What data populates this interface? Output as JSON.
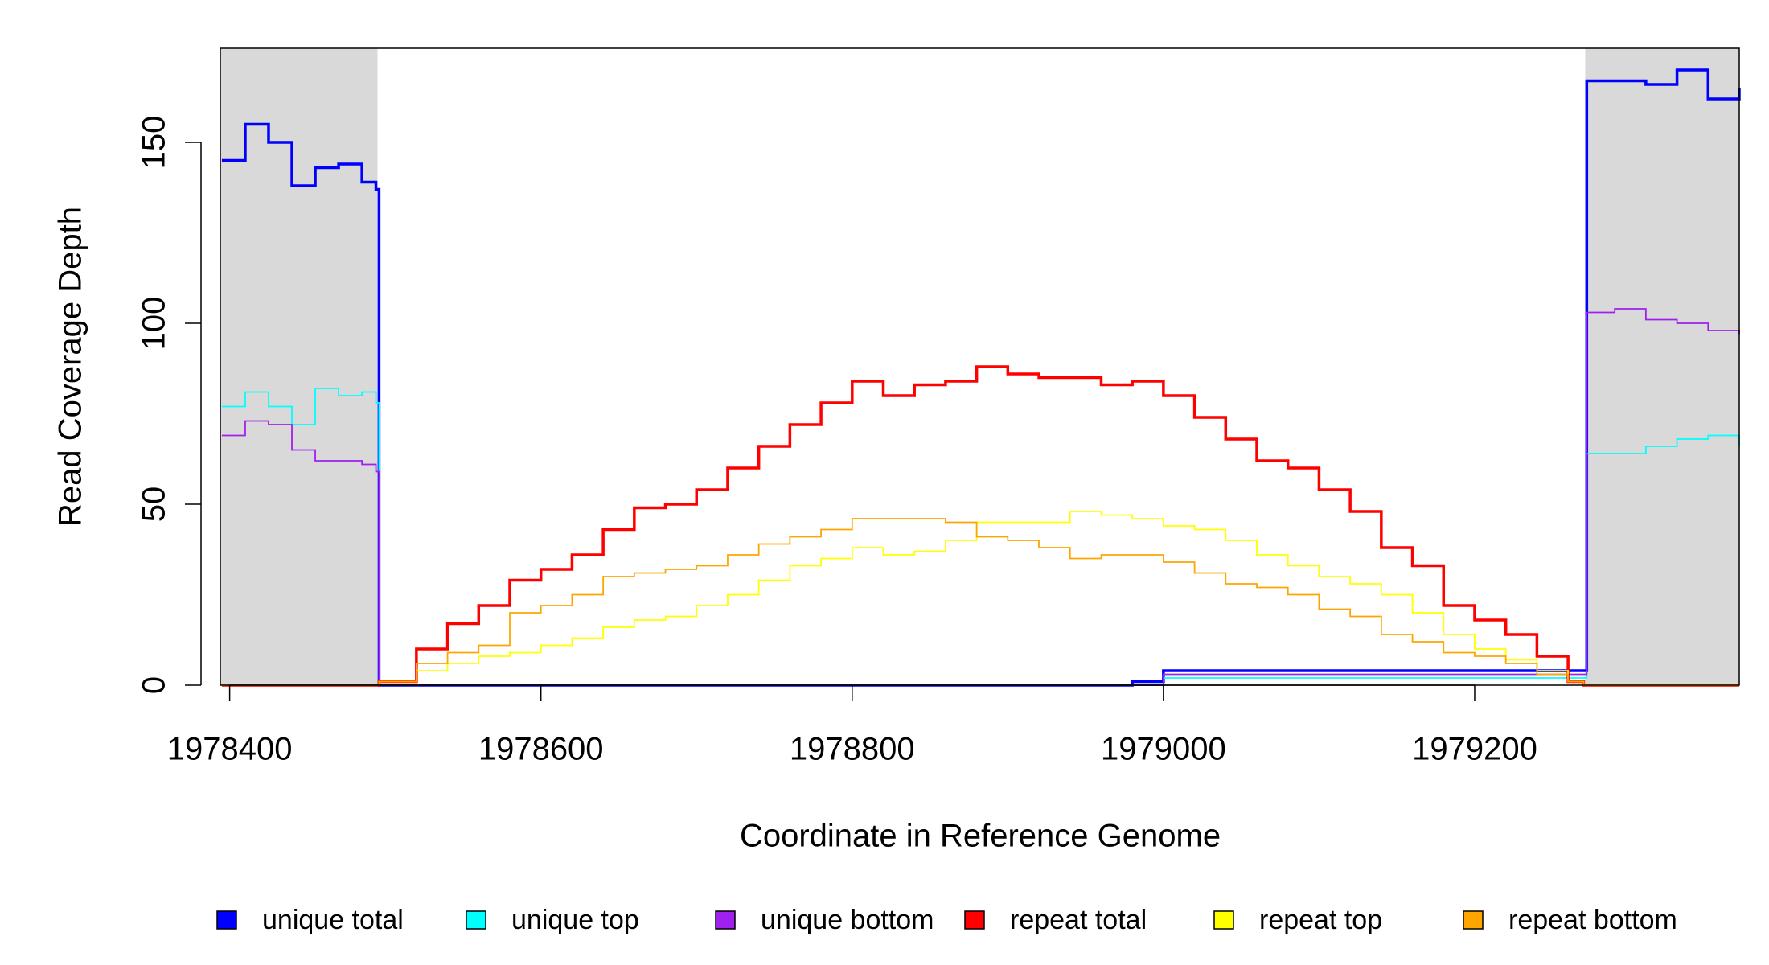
{
  "chart_data": {
    "type": "step-line",
    "x_label": "Coordinate in Reference Genome",
    "y_label": "Read Coverage Depth",
    "xlim": [
      1978394,
      1979370
    ],
    "ylim": [
      0,
      176
    ],
    "xticks": [
      1978400,
      1978600,
      1978800,
      1979000,
      1979200
    ],
    "yticks": [
      0,
      50,
      100,
      150
    ],
    "shaded_ranges": [
      [
        1978394,
        1978495
      ],
      [
        1979271,
        1979370
      ]
    ],
    "shade_color": "#d9d9d9",
    "x": [
      1978395,
      1978410,
      1978425,
      1978440,
      1978455,
      1978470,
      1978485,
      1978494,
      1978496,
      1978520,
      1978540,
      1978560,
      1978580,
      1978600,
      1978620,
      1978640,
      1978660,
      1978680,
      1978700,
      1978720,
      1978740,
      1978760,
      1978780,
      1978800,
      1978820,
      1978840,
      1978860,
      1978880,
      1978900,
      1978920,
      1978940,
      1978960,
      1978980,
      1979000,
      1979020,
      1979040,
      1979060,
      1979080,
      1979100,
      1979120,
      1979140,
      1979160,
      1979180,
      1979200,
      1979220,
      1979240,
      1979260,
      1979270,
      1979272,
      1979290,
      1979310,
      1979330,
      1979350,
      1979370
    ],
    "series": [
      {
        "name": "unique total",
        "color": "#0000ff",
        "values": [
          145,
          155,
          150,
          138,
          143,
          144,
          139,
          137,
          0,
          0,
          0,
          0,
          0,
          0,
          0,
          0,
          0,
          0,
          0,
          0,
          0,
          0,
          0,
          0,
          0,
          0,
          0,
          0,
          0,
          0,
          0,
          0,
          1,
          4,
          4,
          4,
          4,
          4,
          4,
          4,
          4,
          4,
          4,
          4,
          4,
          4,
          4,
          4,
          167,
          167,
          166,
          170,
          162,
          165
        ]
      },
      {
        "name": "unique top",
        "color": "#00ffff",
        "values": [
          77,
          81,
          77,
          72,
          82,
          80,
          81,
          78,
          0,
          0,
          0,
          0,
          0,
          0,
          0,
          0,
          0,
          0,
          0,
          0,
          0,
          0,
          0,
          0,
          0,
          0,
          0,
          0,
          0,
          0,
          0,
          0,
          0,
          2,
          2,
          2,
          2,
          2,
          2,
          2,
          2,
          2,
          2,
          2,
          2,
          2,
          2,
          2,
          64,
          64,
          66,
          68,
          69,
          66
        ]
      },
      {
        "name": "unique bottom",
        "color": "#a020f0",
        "values": [
          69,
          73,
          72,
          65,
          62,
          62,
          61,
          59,
          0,
          0,
          0,
          0,
          0,
          0,
          0,
          0,
          0,
          0,
          0,
          0,
          0,
          0,
          0,
          0,
          0,
          0,
          0,
          0,
          0,
          0,
          0,
          0,
          0,
          3,
          3,
          3,
          3,
          3,
          3,
          3,
          3,
          3,
          3,
          3,
          3,
          3,
          3,
          3,
          103,
          104,
          101,
          100,
          98,
          97
        ]
      },
      {
        "name": "repeat total",
        "color": "#ff0000",
        "values": [
          0,
          0,
          0,
          0,
          0,
          0,
          0,
          0,
          1,
          10,
          17,
          22,
          29,
          32,
          36,
          43,
          49,
          50,
          54,
          60,
          66,
          72,
          78,
          84,
          80,
          83,
          84,
          88,
          86,
          85,
          85,
          83,
          84,
          80,
          74,
          68,
          62,
          60,
          54,
          48,
          38,
          33,
          22,
          18,
          14,
          8,
          1,
          0,
          0,
          0,
          0,
          0,
          0,
          0
        ]
      },
      {
        "name": "repeat top",
        "color": "#ffff00",
        "values": [
          0,
          0,
          0,
          0,
          0,
          0,
          0,
          0,
          1,
          4,
          6,
          8,
          9,
          11,
          13,
          16,
          18,
          19,
          22,
          25,
          29,
          33,
          35,
          38,
          36,
          37,
          40,
          45,
          45,
          45,
          48,
          47,
          46,
          44,
          43,
          40,
          36,
          33,
          30,
          28,
          25,
          20,
          14,
          10,
          7,
          4,
          1,
          0,
          0,
          0,
          0,
          0,
          0,
          0
        ]
      },
      {
        "name": "repeat bottom",
        "color": "#ffa500",
        "values": [
          0,
          0,
          0,
          0,
          0,
          0,
          0,
          0,
          1,
          6,
          9,
          11,
          20,
          22,
          25,
          30,
          31,
          32,
          33,
          36,
          39,
          41,
          43,
          46,
          46,
          46,
          45,
          41,
          40,
          38,
          35,
          36,
          36,
          34,
          31,
          28,
          27,
          25,
          21,
          19,
          14,
          12,
          9,
          8,
          6,
          3,
          1,
          0,
          0,
          0,
          0,
          0,
          0,
          0
        ]
      }
    ]
  }
}
